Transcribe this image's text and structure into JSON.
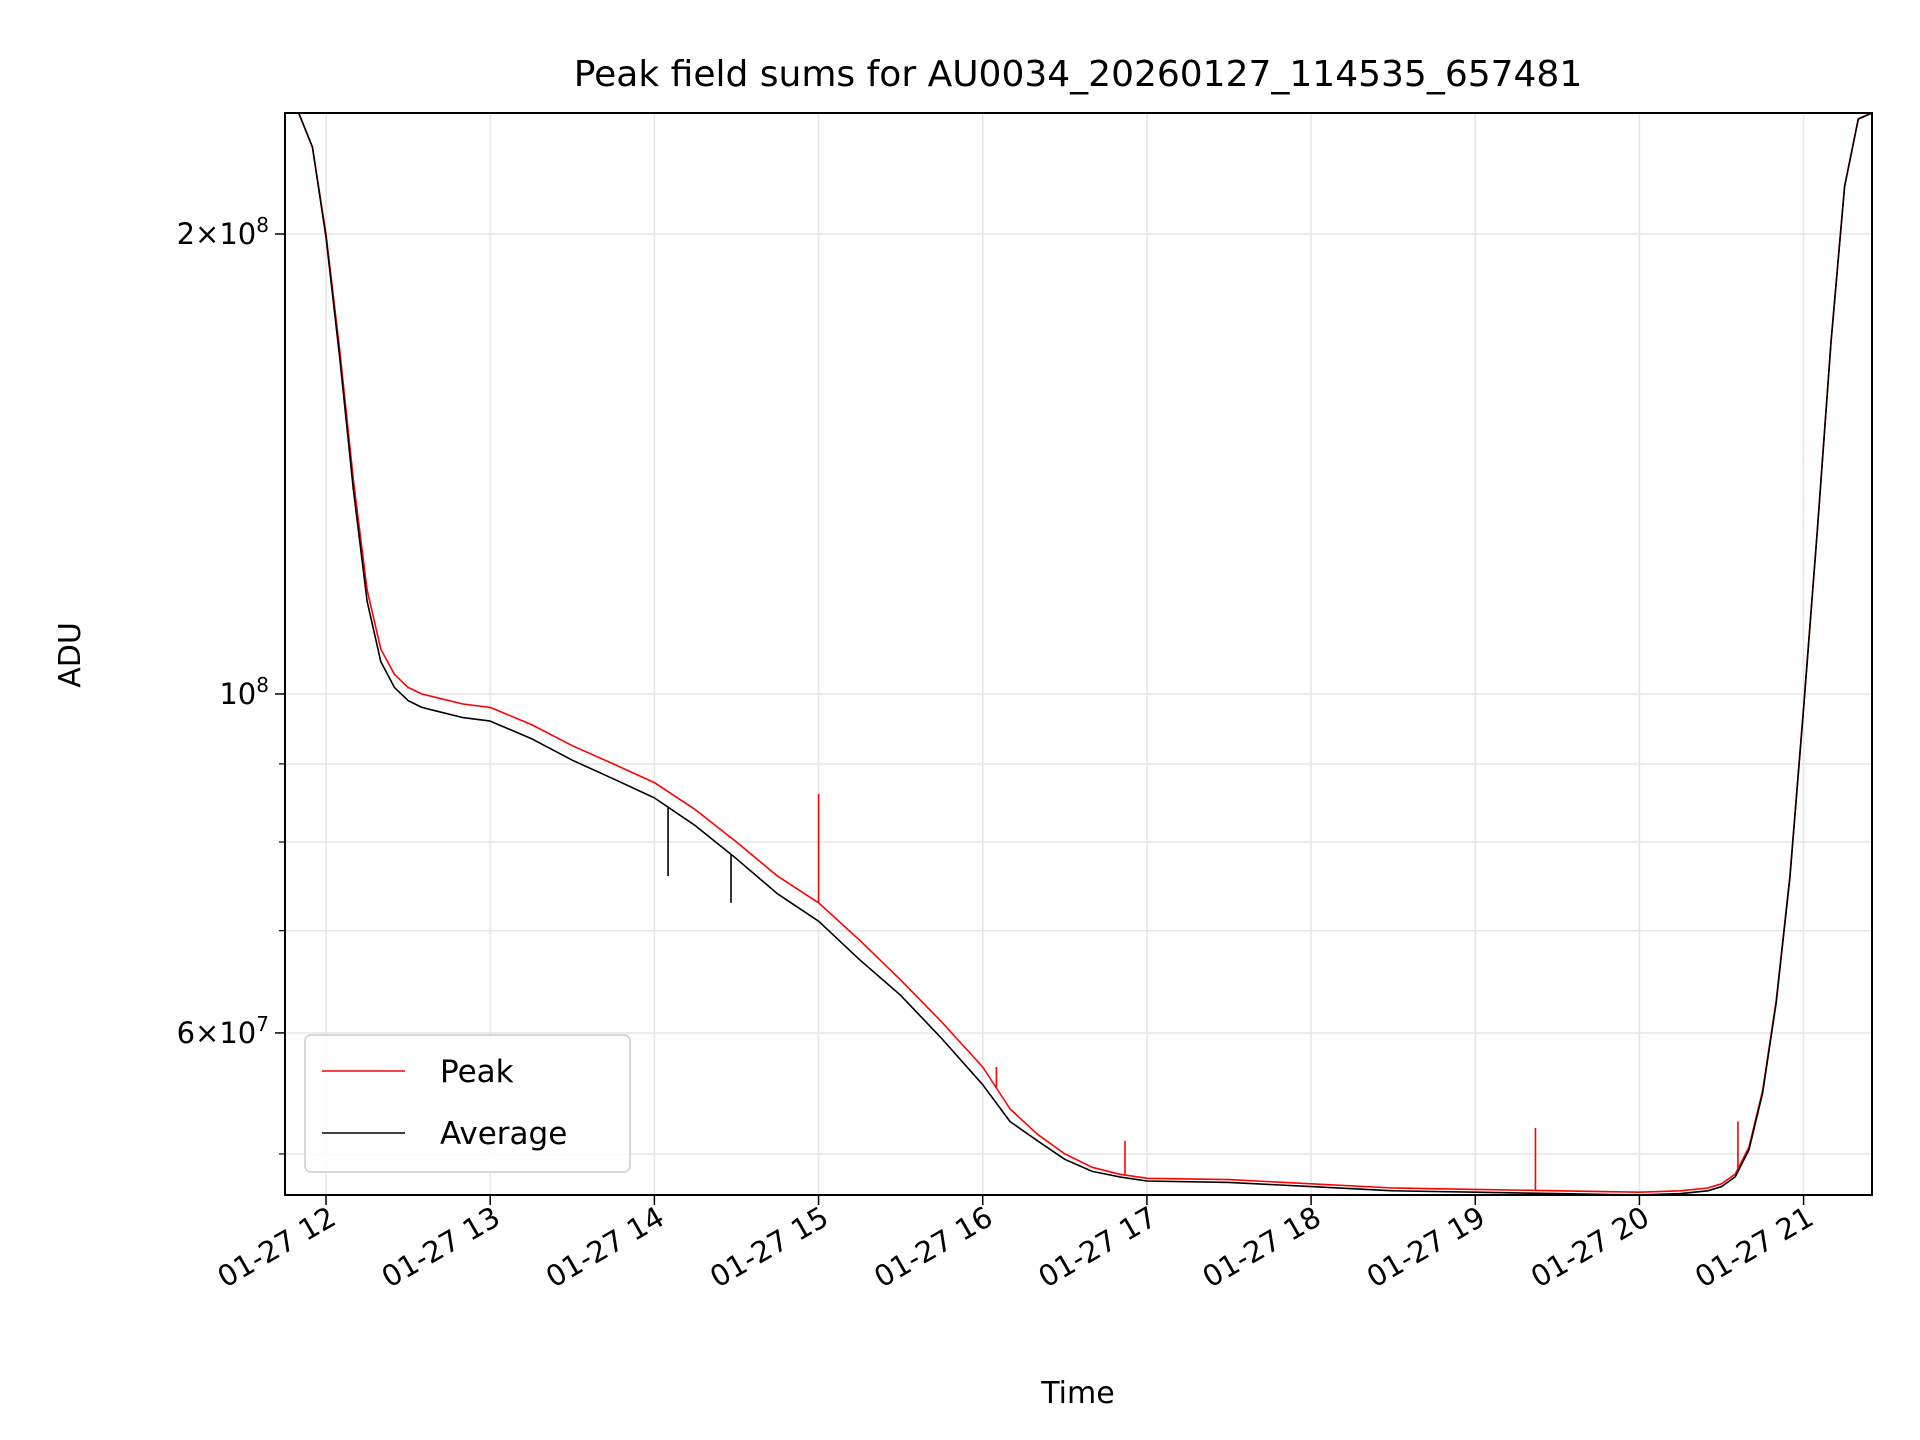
{
  "chart_data": {
    "type": "line",
    "title": "Peak field sums for AU0034_20260127_114535_657481",
    "xlabel": "Time",
    "ylabel": "ADU",
    "y_scale": "log",
    "ylim": [
      47000000,
      240000000
    ],
    "xlim": [
      "2026-01-27 11:45",
      "2026-01-27 21:25"
    ],
    "x_tick_labels": [
      "01-27 12",
      "01-27 13",
      "01-27 14",
      "01-27 15",
      "01-27 16",
      "01-27 17",
      "01-27 18",
      "01-27 19",
      "01-27 20",
      "01-27 21"
    ],
    "y_tick_labels": [
      {
        "value": 200000000,
        "mantissa": "2",
        "exponent": "8"
      },
      {
        "value": 100000000,
        "mantissa": "",
        "exponent": "8"
      },
      {
        "value": 60000000,
        "mantissa": "6",
        "exponent": "7"
      }
    ],
    "y_minor_ticks": [
      50000000,
      70000000,
      80000000,
      90000000
    ],
    "grid": true,
    "legend_position": "lower-left",
    "series": [
      {
        "name": "Peak",
        "color": "#ff0000",
        "x": [
          "11:45",
          "11:50",
          "11:55",
          "12:00",
          "12:05",
          "12:10",
          "12:15",
          "12:20",
          "12:25",
          "12:30",
          "12:35",
          "12:40",
          "12:50",
          "13:00",
          "13:15",
          "13:30",
          "13:45",
          "14:00",
          "14:15",
          "14:30",
          "14:45",
          "15:00",
          "15:15",
          "15:30",
          "15:45",
          "16:00",
          "16:10",
          "16:20",
          "16:30",
          "16:40",
          "16:50",
          "17:00",
          "17:30",
          "18:00",
          "18:30",
          "19:00",
          "19:30",
          "20:00",
          "20:15",
          "20:25",
          "20:30",
          "20:35",
          "20:40",
          "20:45",
          "20:50",
          "20:55",
          "21:00",
          "21:05",
          "21:10",
          "21:15",
          "21:20",
          "21:25"
        ],
        "y": [
          240000000,
          240000000,
          228000000,
          200000000,
          168000000,
          138000000,
          117000000,
          107000000,
          103000000,
          101000000,
          100000000,
          99500000,
          98500000,
          98000000,
          95500000,
          92500000,
          90000000,
          87500000,
          84000000,
          80000000,
          76000000,
          73000000,
          69000000,
          65000000,
          61000000,
          57000000,
          53500000,
          51500000,
          50000000,
          49000000,
          48500000,
          48200000,
          48100000,
          47800000,
          47500000,
          47400000,
          47300000,
          47200000,
          47300000,
          47500000,
          47800000,
          48500000,
          50500000,
          55000000,
          63000000,
          76000000,
          98000000,
          128000000,
          170000000,
          215000000,
          238000000,
          240000000
        ]
      },
      {
        "name": "Average",
        "color": "#000000",
        "x": [
          "11:45",
          "11:50",
          "11:55",
          "12:00",
          "12:05",
          "12:10",
          "12:15",
          "12:20",
          "12:25",
          "12:30",
          "12:35",
          "12:40",
          "12:50",
          "13:00",
          "13:15",
          "13:30",
          "13:45",
          "14:00",
          "14:15",
          "14:30",
          "14:45",
          "15:00",
          "15:15",
          "15:30",
          "15:45",
          "16:00",
          "16:10",
          "16:20",
          "16:30",
          "16:40",
          "16:50",
          "17:00",
          "17:30",
          "18:00",
          "18:30",
          "19:00",
          "19:30",
          "20:00",
          "20:15",
          "20:25",
          "20:30",
          "20:35",
          "20:40",
          "20:45",
          "20:50",
          "20:55",
          "21:00",
          "21:05",
          "21:10",
          "21:15",
          "21:20",
          "21:25"
        ],
        "y": [
          240000000,
          240000000,
          228000000,
          199000000,
          166000000,
          136000000,
          115000000,
          105000000,
          101000000,
          99000000,
          98000000,
          97500000,
          96500000,
          96000000,
          93500000,
          90500000,
          88000000,
          85500000,
          82000000,
          78000000,
          74000000,
          71000000,
          67000000,
          63500000,
          59500000,
          55500000,
          52500000,
          51000000,
          49600000,
          48700000,
          48300000,
          48000000,
          47900000,
          47600000,
          47300000,
          47200000,
          47100000,
          47000000,
          47100000,
          47300000,
          47600000,
          48300000,
          50300000,
          54800000,
          62800000,
          75800000,
          97800000,
          127800000,
          169800000,
          214800000,
          237800000,
          240000000
        ]
      }
    ],
    "annotations": [
      {
        "note": "spikes",
        "series": "Peak",
        "x": "15:00",
        "y": 86000000
      },
      {
        "note": "spikes",
        "series": "Peak",
        "x": "16:05",
        "y": 57000000
      },
      {
        "note": "spikes",
        "series": "Peak",
        "x": "16:52",
        "y": 51000000
      },
      {
        "note": "spikes",
        "series": "Peak",
        "x": "19:22",
        "y": 52000000
      },
      {
        "note": "spikes",
        "series": "Peak",
        "x": "20:36",
        "y": 52500000
      },
      {
        "note": "spikes",
        "series": "Average",
        "x": "14:05",
        "y": 76000000
      },
      {
        "note": "spikes",
        "series": "Average",
        "x": "14:28",
        "y": 73000000
      }
    ]
  }
}
